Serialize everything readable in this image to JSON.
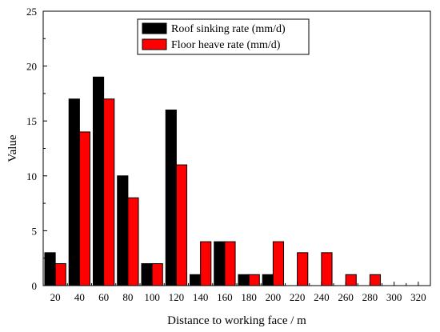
{
  "chart_data": {
    "type": "bar",
    "title": "",
    "xlabel": "Distance to working face / m",
    "ylabel": "Value",
    "x": [
      20,
      40,
      60,
      80,
      100,
      120,
      140,
      160,
      180,
      200,
      220,
      240,
      260,
      280
    ],
    "xticks": [
      20,
      40,
      60,
      80,
      100,
      120,
      140,
      160,
      180,
      200,
      220,
      240,
      260,
      280,
      300,
      320
    ],
    "xlim": [
      10,
      330
    ],
    "ylim": [
      0,
      25
    ],
    "yticks": [
      0,
      5,
      10,
      15,
      20,
      25
    ],
    "series": [
      {
        "name": "Roof sinking rate (mm/d)",
        "color": "#000000",
        "values": [
          3,
          17,
          19,
          10,
          2,
          16,
          1,
          4,
          1,
          1,
          0,
          0,
          0,
          0
        ]
      },
      {
        "name": "Floor heave rate (mm/d)",
        "color": "#ff0000",
        "values": [
          2,
          14,
          17,
          8,
          2,
          11,
          4,
          4,
          1,
          4,
          3,
          3,
          1,
          1
        ]
      }
    ],
    "legend_position": "top-center",
    "grid": false
  }
}
